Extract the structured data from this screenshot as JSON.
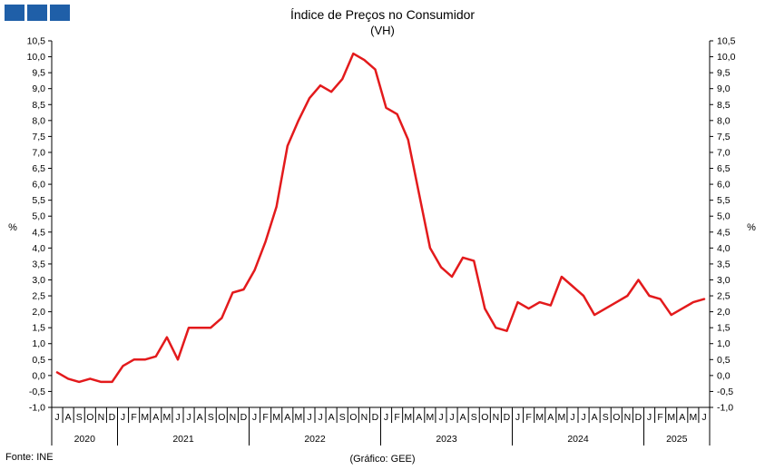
{
  "header": {
    "logo_icon": "ine-logo-icon"
  },
  "chart_data": {
    "type": "line",
    "title": "Índice de Preços no Consumidor",
    "subtitle": "(VH)",
    "ylabel_left": "%",
    "ylabel_right": "%",
    "ylim": [
      -1.0,
      10.5
    ],
    "yticks": [
      "-1,0",
      "-0,5",
      "0,0",
      "0,5",
      "1,0",
      "1,5",
      "2,0",
      "2,5",
      "3,0",
      "3,5",
      "4,0",
      "4,5",
      "5,0",
      "5,5",
      "6,0",
      "6,5",
      "7,0",
      "7,5",
      "8,0",
      "8,5",
      "9,0",
      "9,5",
      "10,0",
      "10,5"
    ],
    "months": [
      "J",
      "A",
      "S",
      "O",
      "N",
      "D",
      "J",
      "F",
      "M",
      "A",
      "M",
      "J",
      "J",
      "A",
      "S",
      "O",
      "N",
      "D",
      "J",
      "F",
      "M",
      "A",
      "M",
      "J",
      "J",
      "A",
      "S",
      "O",
      "N",
      "D",
      "J",
      "F",
      "M",
      "A",
      "M",
      "J",
      "J",
      "A",
      "S",
      "O",
      "N",
      "D",
      "J",
      "F",
      "M",
      "A",
      "M",
      "J",
      "J",
      "A",
      "S",
      "O",
      "N",
      "D",
      "J",
      "F",
      "M",
      "A",
      "M",
      "J"
    ],
    "years": [
      {
        "label": "2020",
        "months": 6
      },
      {
        "label": "2021",
        "months": 12
      },
      {
        "label": "2022",
        "months": 12
      },
      {
        "label": "2023",
        "months": 12
      },
      {
        "label": "2024",
        "months": 12
      },
      {
        "label": "2025",
        "months": 6
      }
    ],
    "series": [
      {
        "color": "#e31a1c",
        "x": [
          "2020-07",
          "2020-08",
          "2020-09",
          "2020-10",
          "2020-11",
          "2020-12",
          "2021-01",
          "2021-02",
          "2021-03",
          "2021-04",
          "2021-05",
          "2021-06",
          "2021-07",
          "2021-08",
          "2021-09",
          "2021-10",
          "2021-11",
          "2021-12",
          "2022-01",
          "2022-02",
          "2022-03",
          "2022-04",
          "2022-05",
          "2022-06",
          "2022-07",
          "2022-08",
          "2022-09",
          "2022-10",
          "2022-11",
          "2022-12",
          "2023-01",
          "2023-02",
          "2023-03",
          "2023-04",
          "2023-05",
          "2023-06",
          "2023-07",
          "2023-08",
          "2023-09",
          "2023-10",
          "2023-11",
          "2023-12",
          "2024-01",
          "2024-02",
          "2024-03",
          "2024-04",
          "2024-05",
          "2024-06",
          "2024-07",
          "2024-08",
          "2024-09",
          "2024-10",
          "2024-11",
          "2024-12",
          "2025-01",
          "2025-02",
          "2025-03",
          "2025-04",
          "2025-05",
          "2025-06"
        ],
        "values": [
          0.1,
          -0.1,
          -0.2,
          -0.1,
          -0.2,
          -0.2,
          0.3,
          0.5,
          0.5,
          0.6,
          1.2,
          0.5,
          1.5,
          1.5,
          1.5,
          1.8,
          2.6,
          2.7,
          3.3,
          4.2,
          5.3,
          7.2,
          8.0,
          8.7,
          9.1,
          8.9,
          9.3,
          10.1,
          9.9,
          9.6,
          8.4,
          8.2,
          7.4,
          5.7,
          4.0,
          3.4,
          3.1,
          3.7,
          3.6,
          2.1,
          1.5,
          1.4,
          2.3,
          2.1,
          2.3,
          2.2,
          3.1,
          2.8,
          2.5,
          1.9,
          2.1,
          2.3,
          2.5,
          3.0,
          2.5,
          2.4,
          1.9,
          2.1,
          2.3,
          2.4
        ]
      }
    ],
    "grid": false
  },
  "footer": {
    "source": "Fonte: INE",
    "credit": "(Gráfico: GEE)"
  }
}
